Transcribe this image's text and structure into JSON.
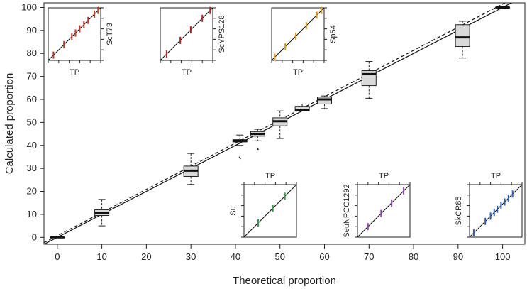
{
  "chart_data": {
    "type": "boxplot",
    "xlabel": "Theoretical proportion",
    "ylabel": "Calculated proportion",
    "xlim": [
      -3,
      105
    ],
    "ylim": [
      -3,
      102
    ],
    "xticks": [
      0,
      10,
      20,
      30,
      40,
      50,
      60,
      70,
      80,
      90,
      100
    ],
    "yticks": [
      0,
      10,
      20,
      30,
      40,
      50,
      60,
      70,
      80,
      90,
      100
    ],
    "reference_lines": [
      {
        "name": "identity",
        "style": "solid",
        "x": [
          -3,
          105
        ],
        "y": [
          -3,
          105
        ]
      },
      {
        "name": "fit",
        "style": "dashed",
        "x": [
          -3,
          105
        ],
        "y": [
          -2.3,
          106.5
        ]
      }
    ],
    "boxes": [
      {
        "x": 0,
        "whisker_low": 0,
        "q1": 0,
        "median": 0,
        "q3": 0,
        "whisker_high": 0,
        "outliers": []
      },
      {
        "x": 10,
        "whisker_low": 5,
        "q1": 9.5,
        "median": 10.5,
        "q3": 12,
        "whisker_high": 16.5,
        "outliers": []
      },
      {
        "x": 30,
        "whisker_low": 23,
        "q1": 26.5,
        "median": 29,
        "q3": 31,
        "whisker_high": 36.5,
        "outliers": []
      },
      {
        "x": 41,
        "whisker_low": 40,
        "q1": 41.5,
        "median": 42,
        "q3": 42.5,
        "whisker_high": 44.5,
        "outliers": [
          35
        ]
      },
      {
        "x": 45,
        "whisker_low": 42,
        "q1": 44,
        "median": 45,
        "q3": 46,
        "whisker_high": 47,
        "outliers": [
          39
        ]
      },
      {
        "x": 50,
        "whisker_low": 43,
        "q1": 48.5,
        "median": 50.5,
        "q3": 52,
        "whisker_high": 55,
        "outliers": []
      },
      {
        "x": 55,
        "whisker_low": 55,
        "q1": 55,
        "median": 55.5,
        "q3": 57,
        "whisker_high": 58,
        "outliers": []
      },
      {
        "x": 60,
        "whisker_low": 56,
        "q1": 58,
        "median": 60,
        "q3": 61,
        "whisker_high": 61.5,
        "outliers": []
      },
      {
        "x": 70,
        "whisker_low": 60.5,
        "q1": 66,
        "median": 71,
        "q3": 72.5,
        "whisker_high": 76.5,
        "outliers": []
      },
      {
        "x": 91,
        "whisker_low": 78,
        "q1": 83,
        "median": 87,
        "q3": 92.5,
        "whisker_high": 94,
        "outliers": []
      },
      {
        "x": 100,
        "whisker_low": 99.5,
        "q1": 100,
        "median": 100,
        "q3": 100,
        "whisker_high": 100.5,
        "outliers": []
      }
    ],
    "insets": [
      {
        "label": "ScT73",
        "xlabel": "TP",
        "color": "#c0392b",
        "position": "top",
        "marks": [
          0.1,
          0.3,
          0.45,
          0.52,
          0.6,
          0.68,
          0.76,
          0.88,
          0.95
        ]
      },
      {
        "label": "ScYPS128",
        "xlabel": "TP",
        "color": "#b22222",
        "position": "top",
        "marks": [
          0.12,
          0.38,
          0.58,
          0.8,
          0.95
        ]
      },
      {
        "label": "Sp54",
        "xlabel": "TP",
        "color": "#e69a10",
        "position": "top",
        "marks": [
          0.06,
          0.26,
          0.46,
          0.66,
          0.86,
          0.95
        ]
      },
      {
        "label": "Su",
        "xlabel": "TP",
        "color": "#2ea043",
        "position": "bottom",
        "marks": [
          0.27,
          0.55,
          0.78
        ]
      },
      {
        "label": "SeuNPCC1292",
        "xlabel": "TP",
        "color": "#8e44ad",
        "position": "bottom",
        "marks": [
          0.2,
          0.45,
          0.65,
          0.88
        ]
      },
      {
        "label": "SkCR85",
        "xlabel": "TP",
        "color": "#2e5fb5",
        "position": "bottom",
        "marks": [
          0.08,
          0.3,
          0.4,
          0.47,
          0.53,
          0.6,
          0.67,
          0.74,
          0.82
        ]
      }
    ]
  }
}
